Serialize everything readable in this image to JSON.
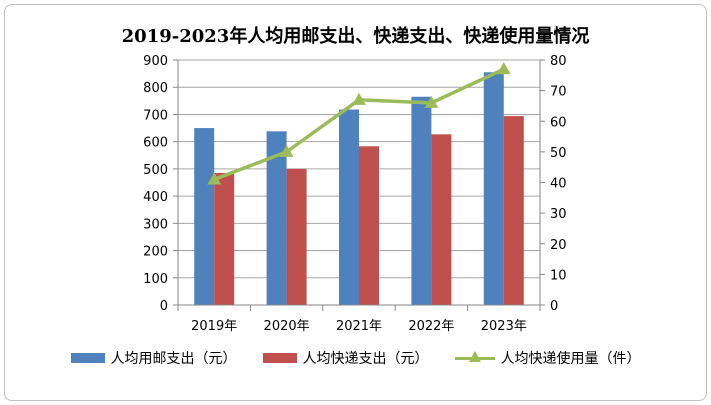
{
  "chart_data": {
    "type": "bar",
    "title": "2019-2023年人均用邮支出、快递支出、快递使用量情况",
    "categories": [
      "2019年",
      "2020年",
      "2021年",
      "2022年",
      "2023年"
    ],
    "series": [
      {
        "name": "人均用邮支出（元）",
        "type": "bar",
        "axis": "left",
        "color": "#4F81BD",
        "values": [
          650,
          638,
          718,
          765,
          855
        ]
      },
      {
        "name": "人均快递支出（元）",
        "type": "bar",
        "axis": "left",
        "color": "#C0504D",
        "values": [
          485,
          500,
          583,
          627,
          694
        ]
      },
      {
        "name": "人均快递使用量（件）",
        "type": "line",
        "axis": "right",
        "color": "#9BBB59",
        "values": [
          41,
          50,
          67,
          66,
          77
        ]
      }
    ],
    "y_left": {
      "min": 0,
      "max": 900,
      "step": 100,
      "ticks": [
        "0",
        "100",
        "200",
        "300",
        "400",
        "500",
        "600",
        "700",
        "800",
        "900"
      ]
    },
    "y_right": {
      "min": 0,
      "max": 80,
      "step": 10,
      "ticks": [
        "0",
        "10",
        "20",
        "30",
        "40",
        "50",
        "60",
        "70",
        "80"
      ]
    },
    "grid": true,
    "legend_position": "bottom"
  }
}
